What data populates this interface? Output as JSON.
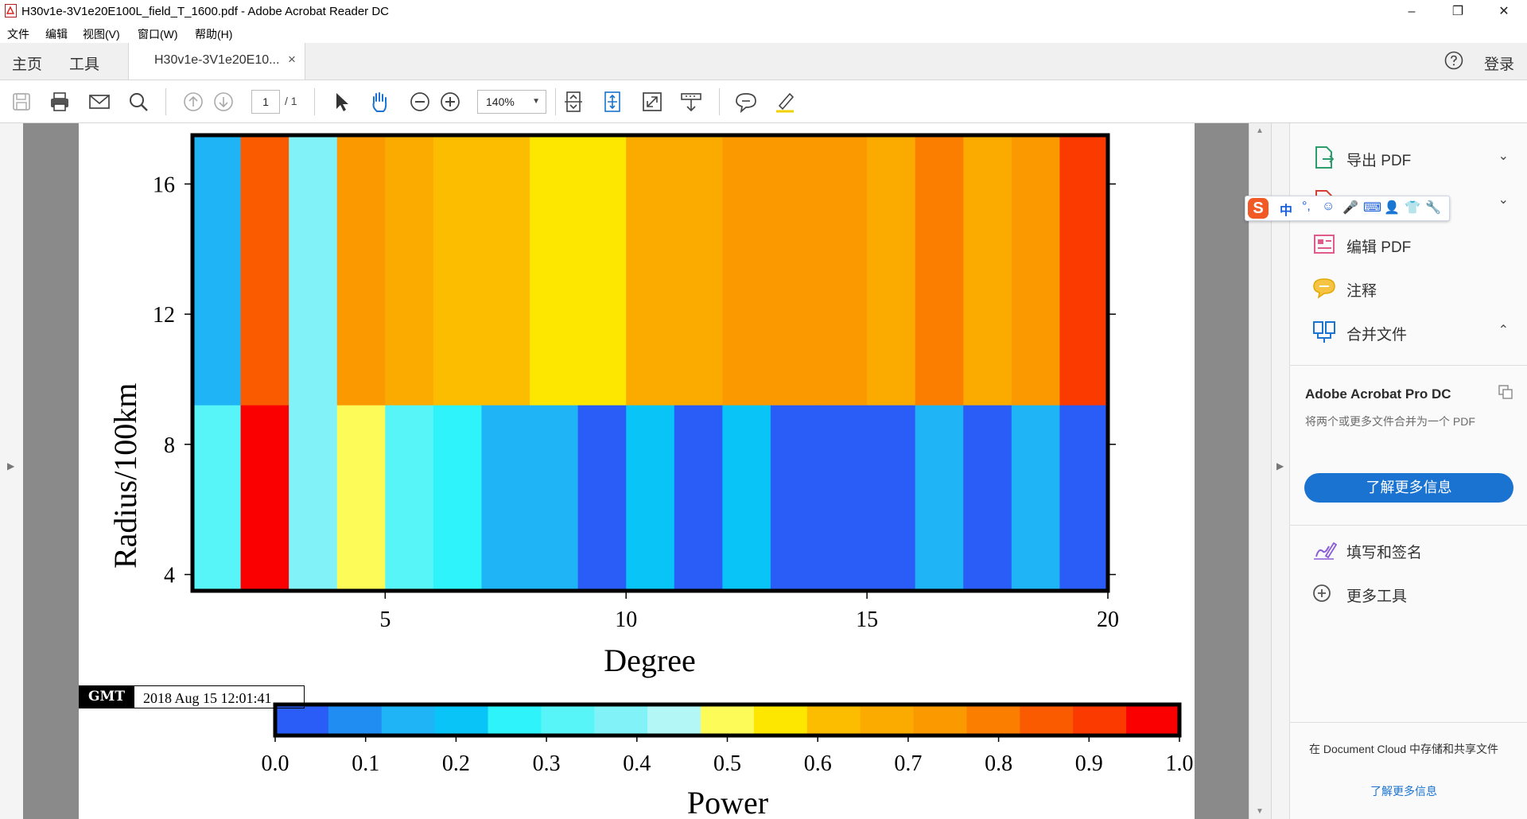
{
  "window": {
    "title": "H30v1e-3V1e20E100L_field_T_1600.pdf - Adobe Acrobat Reader DC",
    "minimize": "–",
    "restore": "❐",
    "close": "✕"
  },
  "menu": [
    "文件",
    "编辑",
    "视图(V)",
    "窗口(W)",
    "帮助(H)"
  ],
  "tabs": {
    "home": "主页",
    "tools": "工具",
    "doc": "H30v1e-3V1e20E10...",
    "close": "×",
    "login": "登录"
  },
  "toolbar": {
    "page_current": "1",
    "page_total": "/ 1",
    "zoom": "140%",
    "zoom_caret": "▼"
  },
  "right_panel": {
    "items": [
      {
        "label": "导出 PDF",
        "chevron": "⌄"
      },
      {
        "label": "",
        "chevron": "⌄"
      },
      {
        "label": "编辑 PDF"
      },
      {
        "label": "注释"
      },
      {
        "label": "合并文件",
        "chevron": "⌃"
      }
    ],
    "promo_title": "Adobe Acrobat Pro DC",
    "promo_desc": "将两个或更多文件合并为一个 PDF",
    "promo_button": "了解更多信息",
    "tools": [
      {
        "label": "填写和签名"
      },
      {
        "label": "更多工具"
      }
    ],
    "doc_cloud_text": "在 Document Cloud 中存储和共享文件",
    "doc_cloud_link": "了解更多信息"
  },
  "ime": {
    "logo": "S",
    "mode": "中",
    "punct": "°,",
    "glyphs": [
      "☺",
      "🎤",
      "⌨",
      "👤",
      "👕",
      "🔧"
    ]
  },
  "pdf": {
    "gmt_logo": "GMT",
    "timestamp": "2018 Aug 15 12:01:41"
  },
  "chart_data": [
    {
      "type": "heatmap",
      "xlabel": "Degree",
      "ylabel": "Radius/100km",
      "x_ticks": [
        "5",
        "10",
        "15",
        "20"
      ],
      "y_ticks": [
        "4",
        "8",
        "12",
        "16"
      ],
      "xlim": [
        1,
        20
      ],
      "ylim": [
        3.5,
        17.5
      ],
      "note_values": "cell values are Power 0-1 estimated per degree column (1..19) and radius band",
      "radius_bands": [
        {
          "range": [
            9.2,
            17.5
          ],
          "values": [
            0.15,
            0.85,
            0.4,
            0.75,
            0.65,
            0.6,
            0.62,
            0.55,
            0.55,
            0.7,
            0.65,
            0.75,
            0.75,
            0.72,
            0.7,
            0.8,
            0.7,
            0.75,
            0.9
          ]
        },
        {
          "range": [
            3.5,
            9.2
          ],
          "values": [
            0.3,
            0.95,
            0.4,
            0.5,
            0.3,
            0.25,
            0.15,
            0.15,
            0.05,
            0.2,
            0.05,
            0.2,
            0.02,
            0.02,
            0.02,
            0.15,
            0.02,
            0.15,
            0.02
          ]
        }
      ]
    },
    {
      "type": "colorbar",
      "xlabel": "Power",
      "ticks": [
        "0.0",
        "0.1",
        "0.2",
        "0.3",
        "0.4",
        "0.5",
        "0.6",
        "0.7",
        "0.8",
        "0.9",
        "1.0"
      ],
      "range": [
        0,
        1
      ],
      "colors": [
        "#2a5cf7",
        "#1f8df2",
        "#1eb4f5",
        "#08c4f7",
        "#2ef3fa",
        "#58f5f8",
        "#80f2f8",
        "#b4f7f7",
        "#fcfb58",
        "#fde700",
        "#fcbc00",
        "#fbaa00",
        "#fb9a00",
        "#fb7e00",
        "#fa5a00",
        "#fb3a00",
        "#fa0000"
      ]
    }
  ]
}
